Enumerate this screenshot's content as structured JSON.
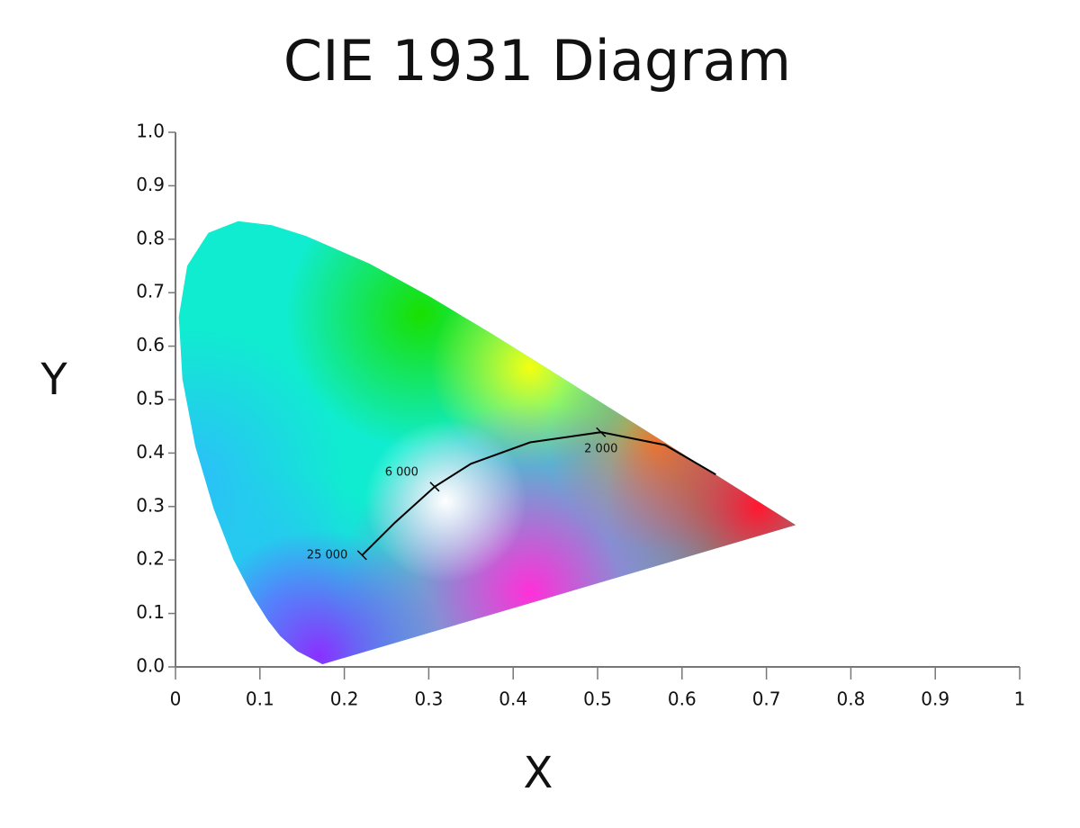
{
  "chart_data": {
    "type": "line",
    "title": "CIE 1931 Diagram",
    "x_label": "X",
    "y_label": "Y",
    "xlim": [
      0,
      1
    ],
    "ylim": [
      0,
      1
    ],
    "xticks": [
      0,
      0.1,
      0.2,
      0.3,
      0.4,
      0.5,
      0.6,
      0.7,
      0.8,
      0.9,
      1
    ],
    "yticks": [
      {
        "value": 0,
        "label": "0.0"
      },
      0.1,
      0.2,
      0.3,
      0.4,
      0.5,
      0.6,
      0.7,
      0.8,
      0.9,
      {
        "value": 1,
        "label": "1.0"
      }
    ],
    "grid": false,
    "series": [
      {
        "color": "#10ecd0",
        "filled": true,
        "x": [
          0.1741,
          0.144,
          0.1241,
          0.1096,
          0.0913,
          0.0687,
          0.0454,
          0.0235,
          0.0082,
          0.0039,
          0.0139,
          0.0389,
          0.0743,
          0.1142,
          0.1547,
          0.2296,
          0.3016,
          0.3731,
          0.4441,
          0.5125,
          0.5752,
          0.627,
          0.6915,
          0.7347,
          0.1741
        ],
        "values": [
          0.005,
          0.0297,
          0.0578,
          0.0868,
          0.1327,
          0.2007,
          0.295,
          0.4127,
          0.5384,
          0.6548,
          0.7502,
          0.812,
          0.8338,
          0.8262,
          0.8059,
          0.7543,
          0.6923,
          0.6245,
          0.5547,
          0.4866,
          0.4242,
          0.3725,
          0.3083,
          0.2653,
          0.005
        ]
      },
      {
        "color": "#000000",
        "filled": false,
        "x": [
          0.221,
          0.26,
          0.307,
          0.35,
          0.42,
          0.504,
          0.58,
          0.64
        ],
        "values": [
          0.209,
          0.27,
          0.337,
          0.38,
          0.42,
          0.439,
          0.415,
          0.36
        ]
      }
    ],
    "annotations": [
      {
        "text": "25 000",
        "x": 0.221,
        "y": 0.209
      },
      {
        "text": "6 000",
        "x": 0.307,
        "y": 0.337
      },
      {
        "text": "2 000",
        "x": 0.504,
        "y": 0.439
      }
    ]
  }
}
